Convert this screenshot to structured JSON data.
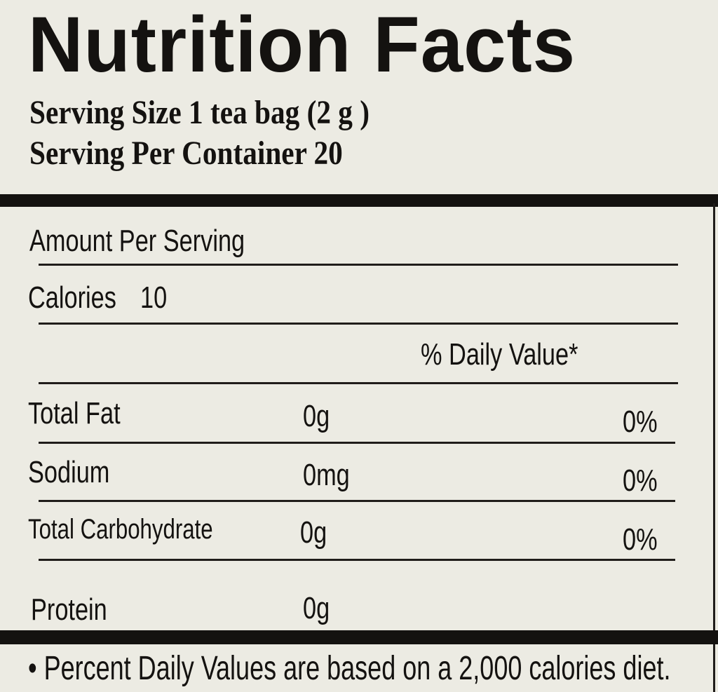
{
  "title": "Nutrition Facts",
  "serving_size": "Serving Size 1 tea bag (2 g )",
  "servings_per_container": "Serving Per Container 20",
  "amount_per_serving": "Amount Per Serving",
  "calories": {
    "label": "Calories",
    "value": "10"
  },
  "daily_value_header": "% Daily Value*",
  "nutrients": [
    {
      "name": "Total Fat",
      "amount": "0g",
      "dv": "0%"
    },
    {
      "name": "Sodium",
      "amount": "0mg",
      "dv": "0%"
    },
    {
      "name": "Total Carbohydrate",
      "amount": "0g",
      "dv": "0%"
    },
    {
      "name": "Protein",
      "amount": "0g",
      "dv": ""
    }
  ],
  "footnote": "• Percent Daily Values are based on a 2,000 calories  diet."
}
